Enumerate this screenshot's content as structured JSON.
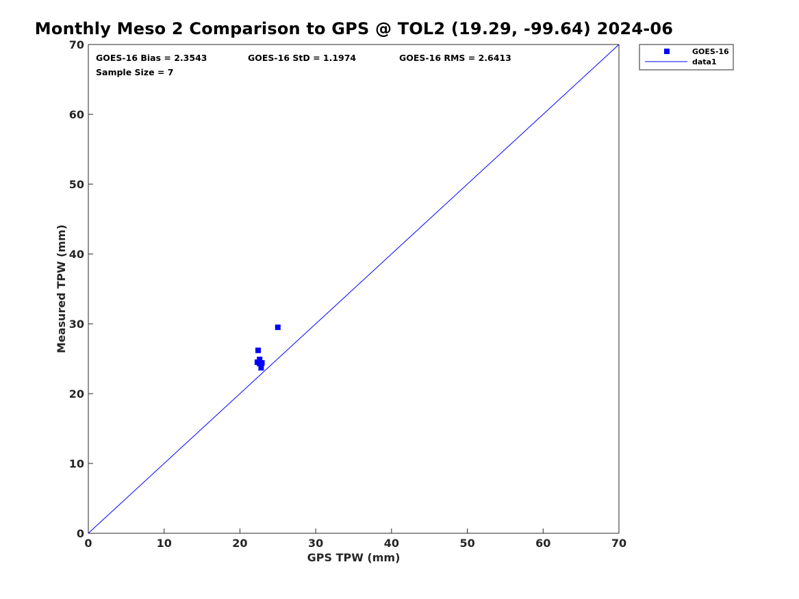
{
  "chart_data": {
    "type": "scatter",
    "title": "Monthly Meso 2 Comparison to GPS @ TOL2 (19.29, -99.64) 2024-06",
    "xlabel": "GPS TPW (mm)",
    "ylabel": "Measured TPW (mm)",
    "xlim": [
      0,
      70
    ],
    "ylim": [
      0,
      70
    ],
    "xticks": [
      "0",
      "10",
      "20",
      "30",
      "40",
      "50",
      "60",
      "70"
    ],
    "yticks": [
      "0",
      "10",
      "20",
      "30",
      "40",
      "50",
      "60",
      "70"
    ],
    "grid": false,
    "legend_position": "top-right outside",
    "series": [
      {
        "name": "GOES-16",
        "kind": "scatter",
        "marker": "square",
        "color": "#0000ff",
        "points": [
          [
            25.0,
            29.5
          ],
          [
            22.4,
            26.2
          ],
          [
            22.6,
            24.9
          ],
          [
            22.3,
            24.5
          ],
          [
            22.9,
            24.4
          ],
          [
            22.6,
            24.3
          ],
          [
            22.8,
            23.7
          ]
        ]
      },
      {
        "name": "data1",
        "kind": "line",
        "color": "#0000ff",
        "points": [
          [
            0,
            0
          ],
          [
            70,
            70
          ]
        ]
      }
    ],
    "annotations": {
      "bias": "GOES-16 Bias = 2.3543",
      "std": "GOES-16 StD = 1.1974",
      "rms": "GOES-16 RMS = 2.6413",
      "sample": "Sample Size = 7"
    }
  }
}
